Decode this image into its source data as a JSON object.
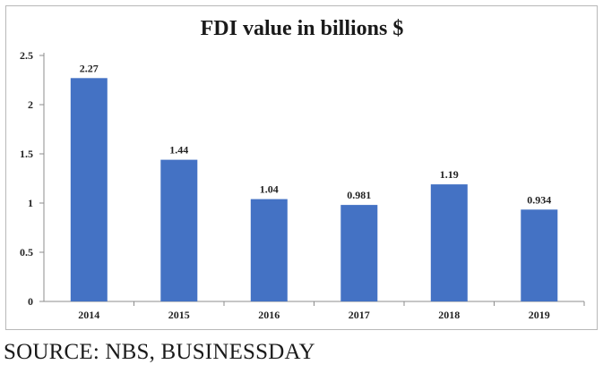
{
  "chart_data": {
    "type": "bar",
    "title": "FDI value in billions $",
    "categories": [
      "2014",
      "2015",
      "2016",
      "2017",
      "2018",
      "2019"
    ],
    "values": [
      2.27,
      1.44,
      1.04,
      0.981,
      1.19,
      0.934
    ],
    "data_labels": [
      "2.27",
      "1.44",
      "1.04",
      "0.981",
      "1.19",
      "0.934"
    ],
    "ylim": [
      0,
      2.5
    ],
    "yticks": [
      0,
      0.5,
      1,
      1.5,
      2,
      2.5
    ],
    "ytick_labels": [
      "0",
      "0.5",
      "1",
      "1.5",
      "2",
      "2.5"
    ],
    "xlabel": "",
    "ylabel": "",
    "grid": false,
    "legend": "none",
    "bar_color": "#4472C4"
  },
  "source": "SOURCE: NBS, BUSINESSDAY"
}
